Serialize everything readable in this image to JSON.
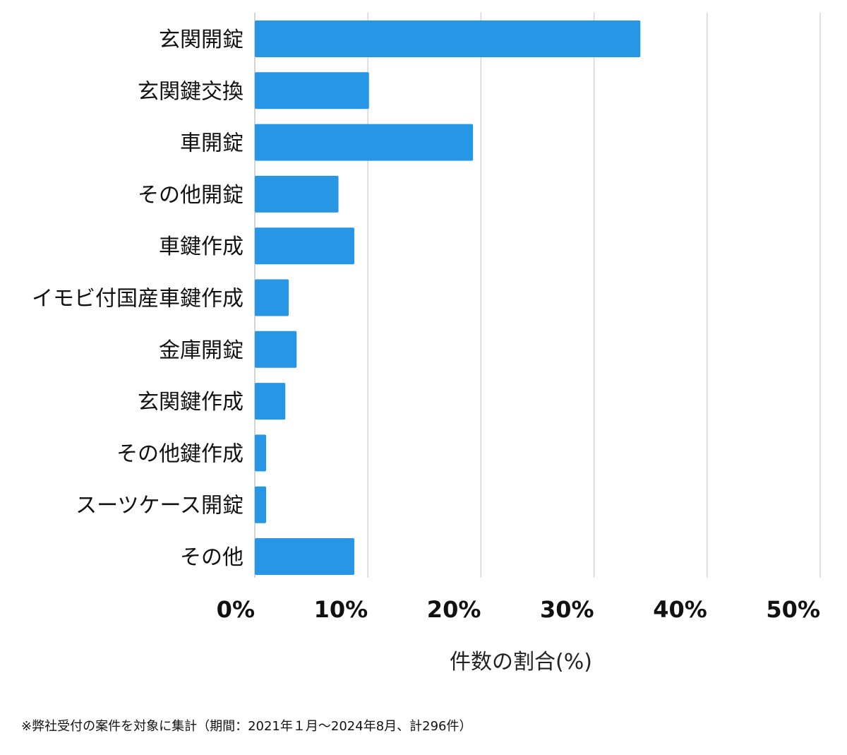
{
  "chart_data": {
    "type": "bar",
    "orientation": "horizontal",
    "categories": [
      "玄関開錠",
      "玄関鍵交換",
      "車開錠",
      "その他開錠",
      "車鍵作成",
      "イモビ付国産車鍵作成",
      "金庫開錠",
      "玄関鍵作成",
      "その他鍵作成",
      "スーツケース開錠",
      "その他"
    ],
    "values": [
      34.1,
      10.1,
      19.3,
      7.4,
      8.8,
      3.0,
      3.7,
      2.7,
      1.0,
      1.0,
      8.8
    ],
    "xlim": [
      0,
      50
    ],
    "xticks": [
      0,
      10,
      20,
      30,
      40,
      50
    ],
    "tick_labels": [
      "0%",
      "10%",
      "20%",
      "30%",
      "40%",
      "50%"
    ],
    "xlabel": "件数の割合(%)",
    "ylabel": "",
    "title": "",
    "grid": "vertical",
    "bar_color": "#2796e4",
    "grid_color": "#d0d0d0"
  },
  "footnote": "※弊社受付の案件を対象に集計（期間：2021年１月～2024年8月、計296件）"
}
